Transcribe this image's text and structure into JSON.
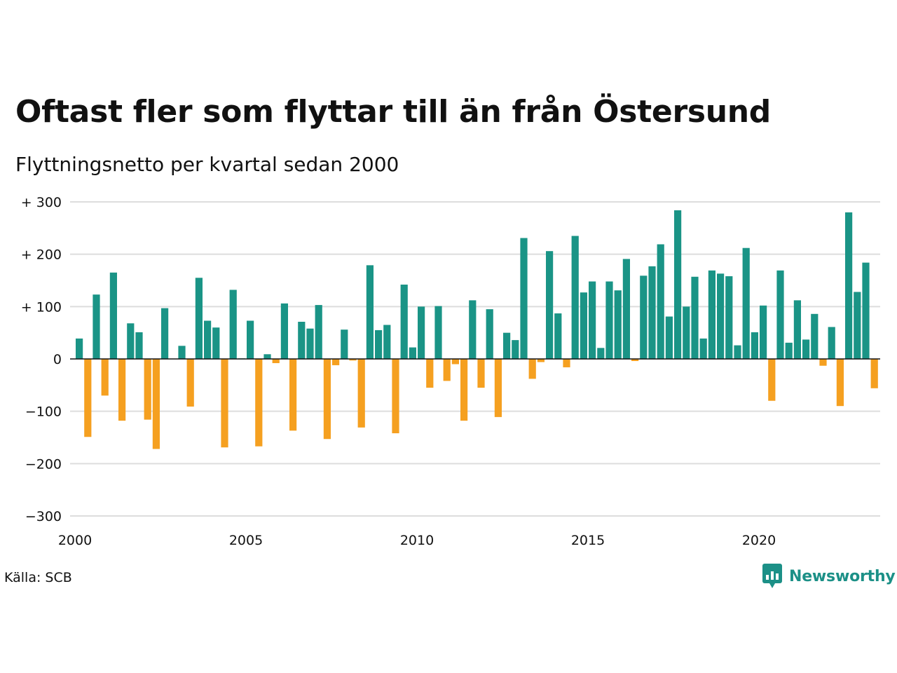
{
  "title": "Oftast fler som flyttar till än från Östersund",
  "subtitle": "Flyttningsnetto per kvartal sedan 2000",
  "source": "Källa: SCB",
  "brand": "Newsworthy",
  "colors": {
    "positive": "#1a9486",
    "negative": "#f5a020",
    "grid": "#dddddd",
    "zero": "#111111",
    "brand": "#1c9087"
  },
  "chart_data": {
    "type": "bar",
    "title": "Oftast fler som flyttar till än från Östersund",
    "subtitle": "Flyttningsnetto per kvartal sedan 2000",
    "xlabel": "",
    "ylabel": "",
    "ylim": [
      -300,
      300
    ],
    "yticks": [
      300,
      200,
      100,
      0,
      -100,
      -200,
      -300
    ],
    "ytick_labels": [
      "+ 300",
      "+ 200",
      "+ 100",
      "0",
      "−100",
      "−200",
      "−300"
    ],
    "xticks": [
      2000,
      2005,
      2010,
      2015,
      2020
    ],
    "xtick_labels": [
      "2000",
      "2005",
      "2010",
      "2015",
      "2020"
    ],
    "grid": true,
    "legend": "none",
    "x_start": "2000 Q1",
    "x_unit": "quarter",
    "values": [
      39,
      -149,
      123,
      -70,
      165,
      -118,
      68,
      51,
      -116,
      -172,
      97,
      0,
      25,
      -91,
      155,
      73,
      60,
      -169,
      132,
      1,
      73,
      -167,
      9,
      -8,
      106,
      -137,
      71,
      58,
      103,
      -153,
      -12,
      56,
      -3,
      -131,
      179,
      55,
      65,
      -142,
      142,
      22,
      100,
      -55,
      101,
      -42,
      -10,
      -118,
      112,
      -55,
      95,
      -111,
      50,
      36,
      231,
      -38,
      -6,
      206,
      87,
      -16,
      235,
      127,
      148,
      21,
      148,
      131,
      191,
      -4,
      159,
      177,
      219,
      81,
      284,
      100,
      157,
      39,
      169,
      163,
      158,
      26,
      212,
      51,
      102,
      -80,
      169,
      31,
      112,
      37,
      86,
      -13,
      61,
      -90,
      280,
      128,
      184,
      -56
    ]
  }
}
